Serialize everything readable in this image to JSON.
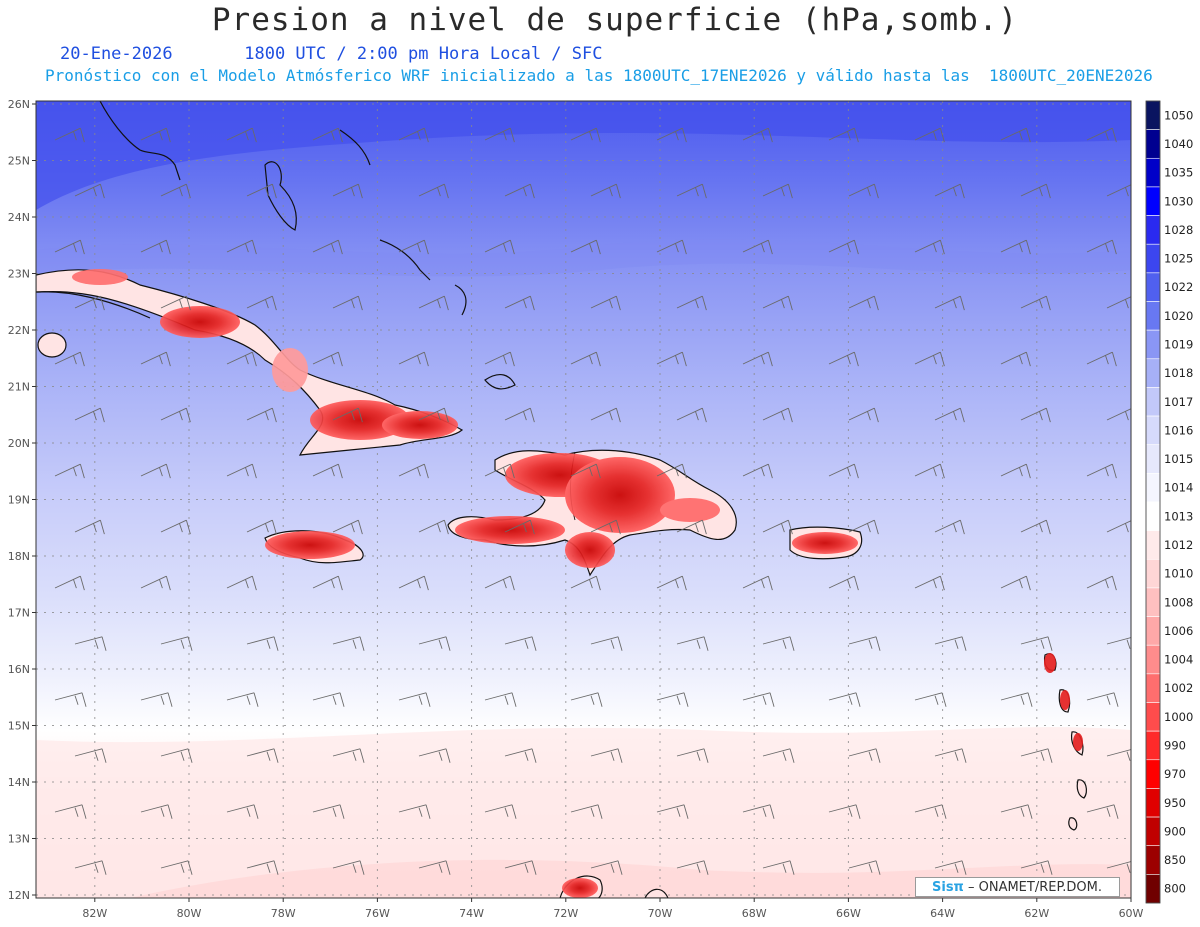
{
  "header": {
    "title": "Presion a nivel de superficie (hPa,somb.)",
    "date": "20-Ene-2026",
    "time": "1800 UTC / 2:00 pm Hora Local / SFC",
    "forecast_line": "Pronóstico con el Modelo Atmósferico WRF inicializado a las 1800UTC_17ENE2026 y válido hasta las  1800UTC_20ENE2026"
  },
  "axes": {
    "lat_labels": [
      "26N",
      "25N",
      "24N",
      "23N",
      "22N",
      "21N",
      "20N",
      "19N",
      "18N",
      "17N",
      "16N",
      "15N",
      "14N",
      "13N",
      "12N"
    ],
    "lon_labels": [
      "82W",
      "80W",
      "78W",
      "76W",
      "74W",
      "72W",
      "70W",
      "68W",
      "66W",
      "64W",
      "62W",
      "60W"
    ]
  },
  "colorbar": {
    "levels": [
      "1050",
      "1040",
      "1035",
      "1030",
      "1028",
      "1025",
      "1022",
      "1020",
      "1019",
      "1018",
      "1017",
      "1016",
      "1015",
      "1014",
      "1013",
      "1012",
      "1010",
      "1008",
      "1006",
      "1004",
      "1002",
      "1000",
      "990",
      "970",
      "950",
      "900",
      "850",
      "800"
    ],
    "colors": [
      "#0a1460",
      "#000090",
      "#0000c8",
      "#0000ff",
      "#2a2af0",
      "#3c46ef",
      "#5060ef",
      "#6878f2",
      "#8a96f5",
      "#a6b0f7",
      "#c2c8f9",
      "#d6dafb",
      "#e6e8fc",
      "#f4f5fe",
      "#ffffff",
      "#ffeaea",
      "#ffd6d6",
      "#ffc0c0",
      "#ffa8a8",
      "#ff8c8c",
      "#ff6e6e",
      "#ff4c4c",
      "#ff2a2a",
      "#ff0000",
      "#e00000",
      "#c00000",
      "#9c0000",
      "#700000"
    ]
  },
  "credit": {
    "logo": "Sisπ",
    "text": "– ONAMET/REP.DOM."
  }
}
